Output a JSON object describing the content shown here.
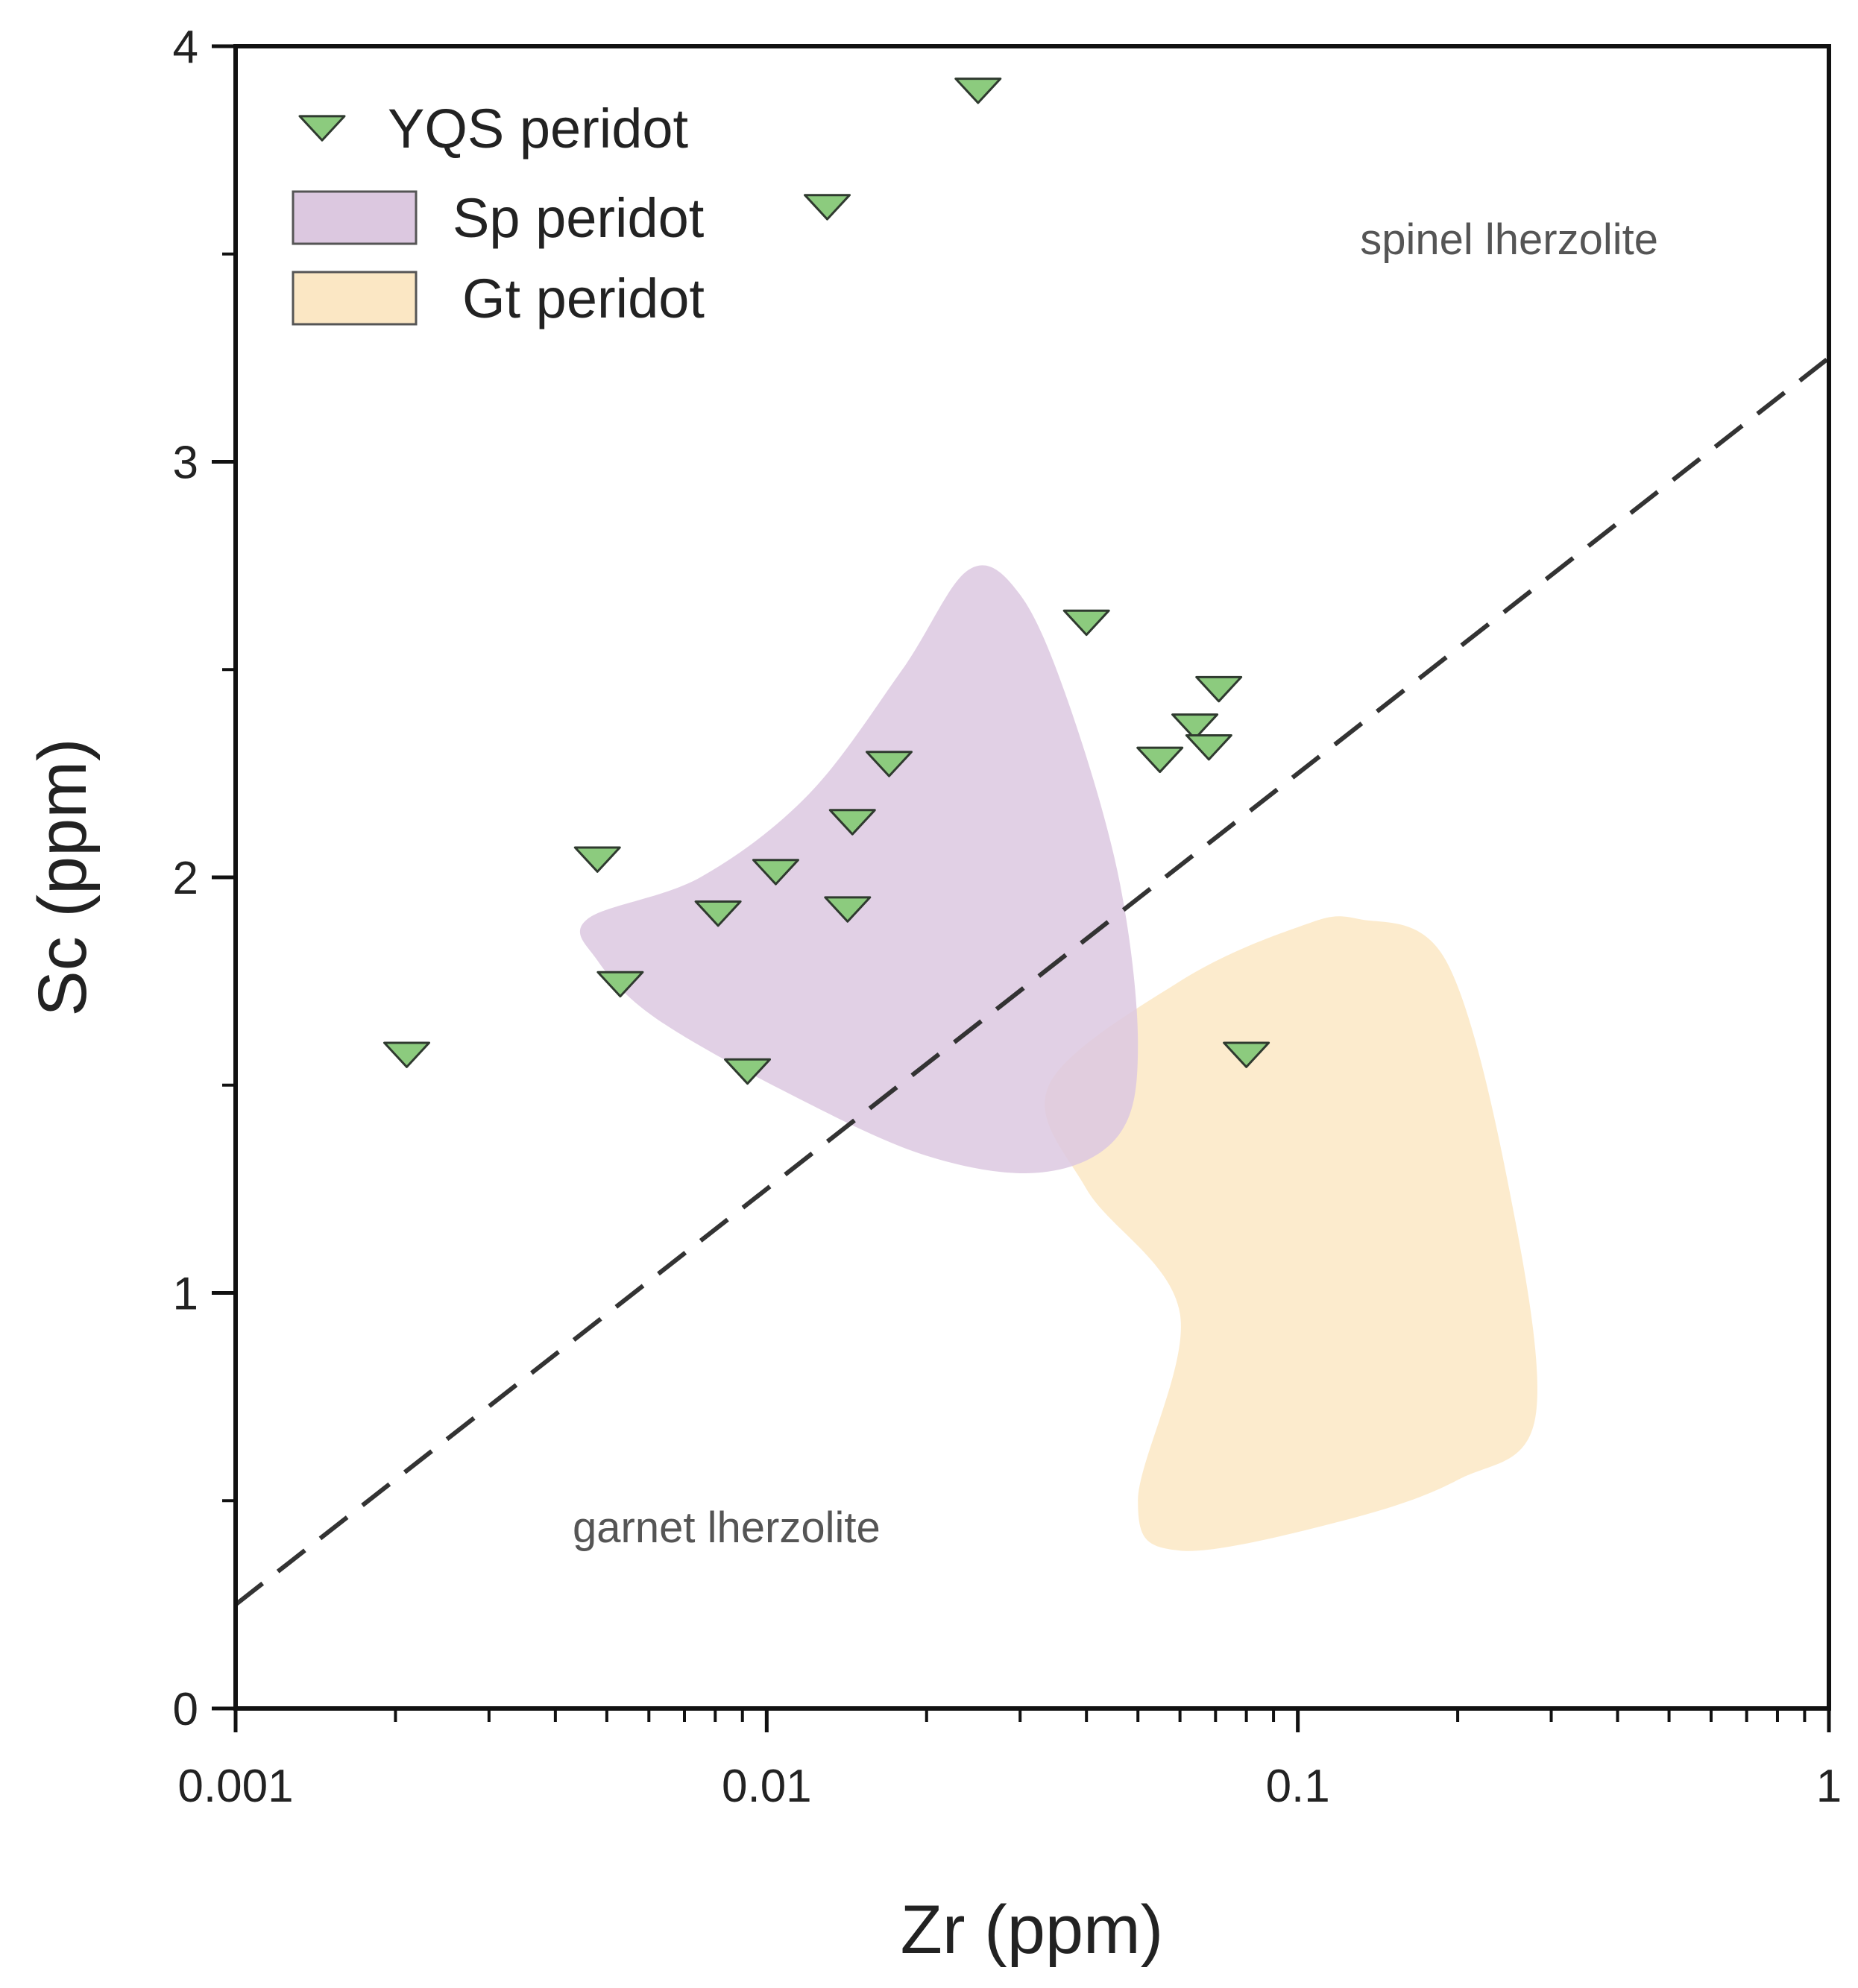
{
  "chart_data": {
    "type": "scatter",
    "title": "",
    "xlabel": "Zr (ppm)",
    "ylabel": "Sc (ppm)",
    "xscale": "log",
    "xlim": [
      0.001,
      1
    ],
    "ylim": [
      0,
      4
    ],
    "x_ticks": [
      {
        "value": 0.001,
        "label": "0.001"
      },
      {
        "value": 0.01,
        "label": "0.01"
      },
      {
        "value": 0.1,
        "label": "0.1"
      },
      {
        "value": 1,
        "label": "1"
      }
    ],
    "y_ticks": [
      {
        "value": 0,
        "label": "0"
      },
      {
        "value": 1,
        "label": "1"
      },
      {
        "value": 2,
        "label": "2"
      },
      {
        "value": 3,
        "label": "3"
      },
      {
        "value": 4,
        "label": "4"
      }
    ],
    "legend": {
      "position": "top-left",
      "entries": [
        {
          "label": "YQS peridot",
          "marker": "triangle-down",
          "color": "#8ccb7e"
        },
        {
          "label": "Sp peridot",
          "marker": "box",
          "color": "#dcc8e0"
        },
        {
          "label": "Gt peridot",
          "marker": "box",
          "color": "#fbe7c4"
        }
      ]
    },
    "series": [
      {
        "name": "YQS peridot",
        "marker": "triangle-down",
        "color": "#8ccb7e",
        "edge_color": "#2f3a2f",
        "points": [
          {
            "x": 0.025,
            "y": 3.9
          },
          {
            "x": 0.013,
            "y": 3.62
          },
          {
            "x": 0.04,
            "y": 2.62
          },
          {
            "x": 0.071,
            "y": 2.46
          },
          {
            "x": 0.064,
            "y": 2.37
          },
          {
            "x": 0.068,
            "y": 2.32
          },
          {
            "x": 0.055,
            "y": 2.29
          },
          {
            "x": 0.017,
            "y": 2.28
          },
          {
            "x": 0.0145,
            "y": 2.14
          },
          {
            "x": 0.0048,
            "y": 2.05
          },
          {
            "x": 0.0104,
            "y": 2.02
          },
          {
            "x": 0.0081,
            "y": 1.92
          },
          {
            "x": 0.0142,
            "y": 1.93
          },
          {
            "x": 0.0053,
            "y": 1.75
          },
          {
            "x": 0.0021,
            "y": 1.58
          },
          {
            "x": 0.0092,
            "y": 1.54
          },
          {
            "x": 0.08,
            "y": 1.58
          }
        ]
      }
    ],
    "fields": [
      {
        "name": "Sp peridot",
        "color": "#dcc8e0",
        "outline": [
          {
            "x": 0.0046,
            "y": 1.9
          },
          {
            "x": 0.0075,
            "y": 2.0
          },
          {
            "x": 0.012,
            "y": 2.2
          },
          {
            "x": 0.018,
            "y": 2.5
          },
          {
            "x": 0.024,
            "y": 2.74
          },
          {
            "x": 0.03,
            "y": 2.68
          },
          {
            "x": 0.037,
            "y": 2.42
          },
          {
            "x": 0.046,
            "y": 2.0
          },
          {
            "x": 0.05,
            "y": 1.6
          },
          {
            "x": 0.046,
            "y": 1.38
          },
          {
            "x": 0.033,
            "y": 1.29
          },
          {
            "x": 0.02,
            "y": 1.33
          },
          {
            "x": 0.011,
            "y": 1.48
          },
          {
            "x": 0.0062,
            "y": 1.66
          },
          {
            "x": 0.0048,
            "y": 1.8
          }
        ]
      },
      {
        "name": "Gt peridot",
        "color": "#fbe7c4",
        "outline": [
          {
            "x": 0.034,
            "y": 1.5
          },
          {
            "x": 0.06,
            "y": 1.75
          },
          {
            "x": 0.1,
            "y": 1.88
          },
          {
            "x": 0.13,
            "y": 1.9
          },
          {
            "x": 0.19,
            "y": 1.8
          },
          {
            "x": 0.25,
            "y": 1.25
          },
          {
            "x": 0.28,
            "y": 0.7
          },
          {
            "x": 0.2,
            "y": 0.55
          },
          {
            "x": 0.12,
            "y": 0.45
          },
          {
            "x": 0.06,
            "y": 0.38
          },
          {
            "x": 0.05,
            "y": 0.5
          },
          {
            "x": 0.06,
            "y": 0.95
          },
          {
            "x": 0.04,
            "y": 1.25
          }
        ]
      }
    ],
    "reference_line": {
      "style": "dashed",
      "from": {
        "x": 0.001,
        "y": 0.25
      },
      "to": {
        "x": 1,
        "y": 3.25
      }
    },
    "annotations": [
      {
        "text": "spinel lherzolite",
        "x": 0.25,
        "y": 3.5
      },
      {
        "text": "garnet lherzolite",
        "x": 0.0084,
        "y": 0.4
      }
    ],
    "grid": false
  }
}
